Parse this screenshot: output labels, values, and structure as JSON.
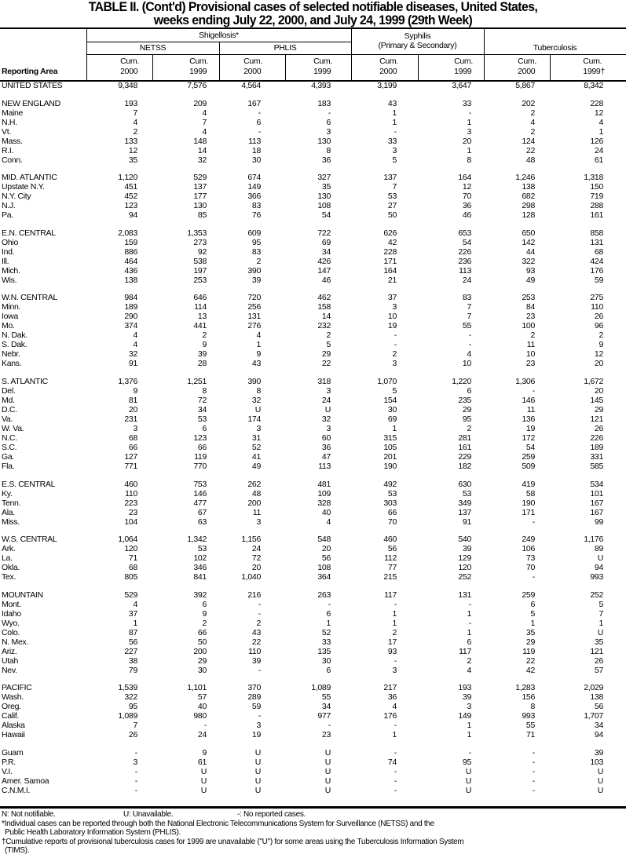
{
  "title": {
    "line1": "TABLE II. (Cont'd) Provisional cases of selected notifiable diseases, United States,",
    "line2": "weeks ending July 22, 2000, and July 24, 1999 (29th Week)"
  },
  "header": {
    "reporting_area": "Reporting Area",
    "shigellosis": "Shigellosis*",
    "netss": "NETSS",
    "phlis": "PHLIS",
    "syphilis_line1": "Syphilis",
    "syphilis_line2": "(Primary & Secondary)",
    "tuberculosis": "Tuberculosis",
    "columns": [
      {
        "l1": "Cum.",
        "l2": "2000"
      },
      {
        "l1": "Cum.",
        "l2": "1999"
      },
      {
        "l1": "Cum.",
        "l2": "2000"
      },
      {
        "l1": "Cum.",
        "l2": "1999"
      },
      {
        "l1": "Cum.",
        "l2": "2000"
      },
      {
        "l1": "Cum.",
        "l2": "1999"
      },
      {
        "l1": "Cum.",
        "l2": "2000"
      },
      {
        "l1": "Cum.",
        "l2": "1999†"
      }
    ]
  },
  "groups": [
    [
      [
        "UNITED STATES",
        "9,348",
        "7,576",
        "4,564",
        "4,393",
        "3,199",
        "3,647",
        "5,867",
        "8,342"
      ]
    ],
    [
      [
        "NEW ENGLAND",
        "193",
        "209",
        "167",
        "183",
        "43",
        "33",
        "202",
        "228"
      ],
      [
        "Maine",
        "7",
        "4",
        "-",
        "-",
        "1",
        "-",
        "2",
        "12"
      ],
      [
        "N.H.",
        "4",
        "7",
        "6",
        "6",
        "1",
        "1",
        "4",
        "4"
      ],
      [
        "Vt.",
        "2",
        "4",
        "-",
        "3",
        "-",
        "3",
        "2",
        "1"
      ],
      [
        "Mass.",
        "133",
        "148",
        "113",
        "130",
        "33",
        "20",
        "124",
        "126"
      ],
      [
        "R.I.",
        "12",
        "14",
        "18",
        "8",
        "3",
        "1",
        "22",
        "24"
      ],
      [
        "Conn.",
        "35",
        "32",
        "30",
        "36",
        "5",
        "8",
        "48",
        "61"
      ]
    ],
    [
      [
        "MID. ATLANTIC",
        "1,120",
        "529",
        "674",
        "327",
        "137",
        "164",
        "1,246",
        "1,318"
      ],
      [
        "Upstate N.Y.",
        "451",
        "137",
        "149",
        "35",
        "7",
        "12",
        "138",
        "150"
      ],
      [
        "N.Y. City",
        "452",
        "177",
        "366",
        "130",
        "53",
        "70",
        "682",
        "719"
      ],
      [
        "N.J.",
        "123",
        "130",
        "83",
        "108",
        "27",
        "36",
        "298",
        "288"
      ],
      [
        "Pa.",
        "94",
        "85",
        "76",
        "54",
        "50",
        "46",
        "128",
        "161"
      ]
    ],
    [
      [
        "E.N. CENTRAL",
        "2,083",
        "1,353",
        "609",
        "722",
        "626",
        "653",
        "650",
        "858"
      ],
      [
        "Ohio",
        "159",
        "273",
        "95",
        "69",
        "42",
        "54",
        "142",
        "131"
      ],
      [
        "Ind.",
        "886",
        "92",
        "83",
        "34",
        "228",
        "226",
        "44",
        "68"
      ],
      [
        "Ill.",
        "464",
        "538",
        "2",
        "426",
        "171",
        "236",
        "322",
        "424"
      ],
      [
        "Mich.",
        "436",
        "197",
        "390",
        "147",
        "164",
        "113",
        "93",
        "176"
      ],
      [
        "Wis.",
        "138",
        "253",
        "39",
        "46",
        "21",
        "24",
        "49",
        "59"
      ]
    ],
    [
      [
        "W.N. CENTRAL",
        "984",
        "646",
        "720",
        "462",
        "37",
        "83",
        "253",
        "275"
      ],
      [
        "Minn.",
        "189",
        "114",
        "256",
        "158",
        "3",
        "7",
        "84",
        "110"
      ],
      [
        "Iowa",
        "290",
        "13",
        "131",
        "14",
        "10",
        "7",
        "23",
        "26"
      ],
      [
        "Mo.",
        "374",
        "441",
        "276",
        "232",
        "19",
        "55",
        "100",
        "96"
      ],
      [
        "N. Dak.",
        "4",
        "2",
        "4",
        "2",
        "-",
        "-",
        "2",
        "2"
      ],
      [
        "S. Dak.",
        "4",
        "9",
        "1",
        "5",
        "-",
        "-",
        "11",
        "9"
      ],
      [
        "Nebr.",
        "32",
        "39",
        "9",
        "29",
        "2",
        "4",
        "10",
        "12"
      ],
      [
        "Kans.",
        "91",
        "28",
        "43",
        "22",
        "3",
        "10",
        "23",
        "20"
      ]
    ],
    [
      [
        "S. ATLANTIC",
        "1,376",
        "1,251",
        "390",
        "318",
        "1,070",
        "1,220",
        "1,306",
        "1,672"
      ],
      [
        "Del.",
        "9",
        "8",
        "8",
        "3",
        "5",
        "6",
        "-",
        "20"
      ],
      [
        "Md.",
        "81",
        "72",
        "32",
        "24",
        "154",
        "235",
        "146",
        "145"
      ],
      [
        "D.C.",
        "20",
        "34",
        "U",
        "U",
        "30",
        "29",
        "11",
        "29"
      ],
      [
        "Va.",
        "231",
        "53",
        "174",
        "32",
        "69",
        "95",
        "136",
        "121"
      ],
      [
        "W. Va.",
        "3",
        "6",
        "3",
        "3",
        "1",
        "2",
        "19",
        "26"
      ],
      [
        "N.C.",
        "68",
        "123",
        "31",
        "60",
        "315",
        "281",
        "172",
        "226"
      ],
      [
        "S.C.",
        "66",
        "66",
        "52",
        "36",
        "105",
        "161",
        "54",
        "189"
      ],
      [
        "Ga.",
        "127",
        "119",
        "41",
        "47",
        "201",
        "229",
        "259",
        "331"
      ],
      [
        "Fla.",
        "771",
        "770",
        "49",
        "113",
        "190",
        "182",
        "509",
        "585"
      ]
    ],
    [
      [
        "E.S. CENTRAL",
        "460",
        "753",
        "262",
        "481",
        "492",
        "630",
        "419",
        "534"
      ],
      [
        "Ky.",
        "110",
        "146",
        "48",
        "109",
        "53",
        "53",
        "58",
        "101"
      ],
      [
        "Tenn.",
        "223",
        "477",
        "200",
        "328",
        "303",
        "349",
        "190",
        "167"
      ],
      [
        "Ala.",
        "23",
        "67",
        "11",
        "40",
        "66",
        "137",
        "171",
        "167"
      ],
      [
        "Miss.",
        "104",
        "63",
        "3",
        "4",
        "70",
        "91",
        "-",
        "99"
      ]
    ],
    [
      [
        "W.S. CENTRAL",
        "1,064",
        "1,342",
        "1,156",
        "548",
        "460",
        "540",
        "249",
        "1,176"
      ],
      [
        "Ark.",
        "120",
        "53",
        "24",
        "20",
        "56",
        "39",
        "106",
        "89"
      ],
      [
        "La.",
        "71",
        "102",
        "72",
        "56",
        "112",
        "129",
        "73",
        "U"
      ],
      [
        "Okla.",
        "68",
        "346",
        "20",
        "108",
        "77",
        "120",
        "70",
        "94"
      ],
      [
        "Tex.",
        "805",
        "841",
        "1,040",
        "364",
        "215",
        "252",
        "-",
        "993"
      ]
    ],
    [
      [
        "MOUNTAIN",
        "529",
        "392",
        "216",
        "263",
        "117",
        "131",
        "259",
        "252"
      ],
      [
        "Mont.",
        "4",
        "6",
        "-",
        "-",
        "-",
        "-",
        "6",
        "5"
      ],
      [
        "Idaho",
        "37",
        "9",
        "-",
        "6",
        "1",
        "1",
        "5",
        "7"
      ],
      [
        "Wyo.",
        "1",
        "2",
        "2",
        "1",
        "1",
        "-",
        "1",
        "1"
      ],
      [
        "Colo.",
        "87",
        "66",
        "43",
        "52",
        "2",
        "1",
        "35",
        "U"
      ],
      [
        "N. Mex.",
        "56",
        "50",
        "22",
        "33",
        "17",
        "6",
        "29",
        "35"
      ],
      [
        "Ariz.",
        "227",
        "200",
        "110",
        "135",
        "93",
        "117",
        "119",
        "121"
      ],
      [
        "Utah",
        "38",
        "29",
        "39",
        "30",
        "-",
        "2",
        "22",
        "26"
      ],
      [
        "Nev.",
        "79",
        "30",
        "-",
        "6",
        "3",
        "4",
        "42",
        "57"
      ]
    ],
    [
      [
        "PACIFIC",
        "1,539",
        "1,101",
        "370",
        "1,089",
        "217",
        "193",
        "1,283",
        "2,029"
      ],
      [
        "Wash.",
        "322",
        "57",
        "289",
        "55",
        "36",
        "39",
        "156",
        "138"
      ],
      [
        "Oreg.",
        "95",
        "40",
        "59",
        "34",
        "4",
        "3",
        "8",
        "56"
      ],
      [
        "Calif.",
        "1,089",
        "980",
        "-",
        "977",
        "176",
        "149",
        "993",
        "1,707"
      ],
      [
        "Alaska",
        "7",
        "-",
        "3",
        "-",
        "-",
        "1",
        "55",
        "34"
      ],
      [
        "Hawaii",
        "26",
        "24",
        "19",
        "23",
        "1",
        "1",
        "71",
        "94"
      ]
    ],
    [
      [
        "Guam",
        "-",
        "9",
        "U",
        "U",
        "-",
        "-",
        "-",
        "39"
      ],
      [
        "P.R.",
        "3",
        "61",
        "U",
        "U",
        "74",
        "95",
        "-",
        "103"
      ],
      [
        "V.I.",
        "-",
        "U",
        "U",
        "U",
        "-",
        "U",
        "-",
        "U"
      ],
      [
        "Amer. Samoa",
        "-",
        "U",
        "U",
        "U",
        "-",
        "U",
        "-",
        "U"
      ],
      [
        "C.N.M.I.",
        "-",
        "U",
        "U",
        "U",
        "-",
        "U",
        "-",
        "U"
      ]
    ]
  ],
  "footnotes": {
    "legend_n": "N: Not notifiable.",
    "legend_u": "U: Unavailable.",
    "legend_dash": "-: No reported cases.",
    "note1_line1": "*Individual cases can be reported through both the National Electronic Telecommunications System for Surveillance (NETSS) and the",
    "note1_line2": "Public Health Laboratory Information System (PHLIS).",
    "note2_line1": "†Cumulative reports of provisional tuberculosis cases for 1999 are unavailable (\"U\") for some areas using the Tuberculosis Information System",
    "note2_line2": "(TIMS)."
  }
}
